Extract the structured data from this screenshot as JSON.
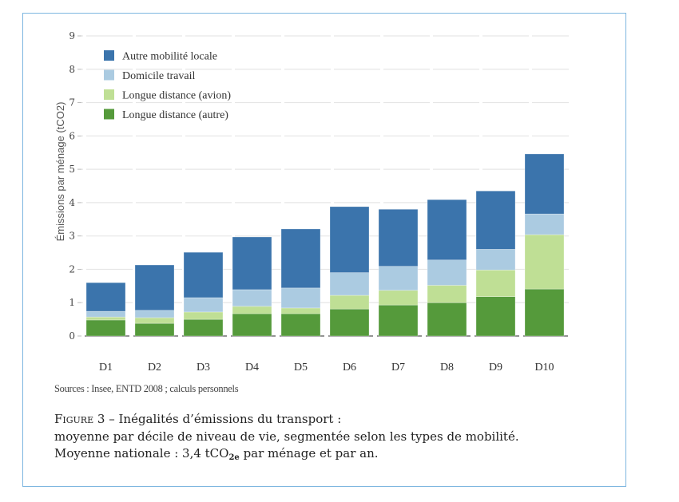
{
  "chart_data": {
    "type": "bar",
    "stacked": true,
    "title": "",
    "xlabel": "",
    "ylabel": "Émissions par ménage (tCO2)",
    "ylim": [
      0,
      9
    ],
    "yticks": [
      0,
      1,
      2,
      3,
      4,
      5,
      6,
      7,
      8,
      9
    ],
    "grid": true,
    "legend_position": "top-left",
    "categories": [
      "D1",
      "D2",
      "D3",
      "D4",
      "D5",
      "D6",
      "D7",
      "D8",
      "D9",
      "D10"
    ],
    "series": [
      {
        "name": "Longue distance (autre)",
        "color": "#559a3b",
        "values": [
          0.48,
          0.38,
          0.5,
          0.67,
          0.67,
          0.81,
          0.93,
          1.0,
          1.18,
          1.41
        ]
      },
      {
        "name": "Longue distance (avion)",
        "color": "#bfdf95",
        "values": [
          0.09,
          0.17,
          0.22,
          0.22,
          0.17,
          0.41,
          0.44,
          0.52,
          0.8,
          1.63
        ]
      },
      {
        "name": "Domicile travail",
        "color": "#abcbe1",
        "values": [
          0.17,
          0.22,
          0.43,
          0.5,
          0.6,
          0.68,
          0.72,
          0.76,
          0.62,
          0.62
        ]
      },
      {
        "name": "Autre mobilité locale",
        "color": "#3b74ac",
        "values": [
          0.86,
          1.36,
          1.36,
          1.58,
          1.77,
          1.98,
          1.71,
          1.81,
          1.75,
          1.8
        ]
      }
    ],
    "legend_order": [
      "Autre mobilité locale",
      "Domicile travail",
      "Longue distance (avion)",
      "Longue distance (autre)"
    ]
  },
  "source": "Sources : Insee, ENTD 2008 ; calculs personnels",
  "caption": {
    "figure_label": "Figure 3",
    "dash": " – ",
    "title": "Inégalités d’émissions du transport :",
    "line2": "moyenne par décile de niveau de vie, segmentée selon les types de mobilité.",
    "line3_prefix": "Moyenne nationale : 3,4 tCO",
    "line3_sub": "2e",
    "line3_suffix": " par ménage et par an."
  },
  "colors": {
    "frame_border": "#7db6e0",
    "gridline": "#e6e6e6"
  }
}
